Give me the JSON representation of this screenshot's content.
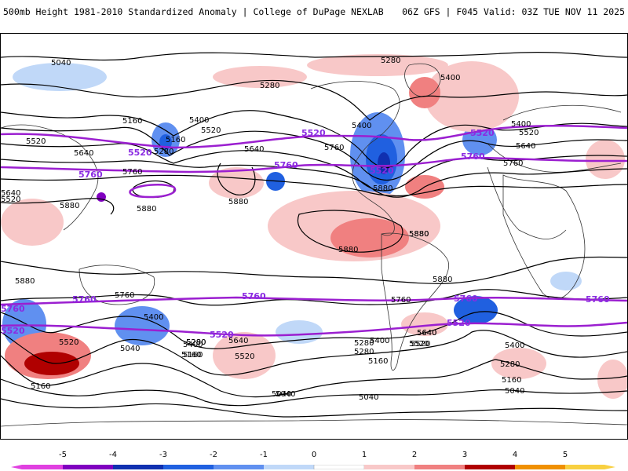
{
  "header": {
    "title_left": "500mb Height 1981-2010 Standardized Anomaly | College of DuPage NEXLAB",
    "title_right": "06Z GFS | F045 Valid: 03Z TUE NOV 11 2025"
  },
  "colorbar": {
    "ticks": [
      "-5",
      "-4",
      "-3",
      "-2",
      "-1",
      "0",
      "1",
      "2",
      "3",
      "4",
      "5"
    ],
    "colors": [
      "#e040e0",
      "#8000c0",
      "#1030b0",
      "#2060e0",
      "#6090f0",
      "#c0d8f8",
      "#ffffff",
      "#f8c8c8",
      "#f08080",
      "#e02020",
      "#b00000",
      "#f09000",
      "#f8d040"
    ]
  },
  "map": {
    "contour_labels_black": [
      "5040",
      "5280",
      "5400",
      "5160",
      "5520",
      "5640",
      "5760",
      "5880"
    ],
    "contour_labels_purple": [
      "5520",
      "5760"
    ],
    "labels": {
      "l1": "5040",
      "l2": "5280",
      "l3": "5280",
      "l4": "5400",
      "l5": "5400",
      "l6": "5160",
      "l7": "5400",
      "l8": "5520",
      "l9": "5520",
      "l10": "5640",
      "l11": "5280",
      "l12": "5640",
      "l13": "5760",
      "l14": "5880",
      "l15": "5880",
      "l16": "5880",
      "l17": "5880",
      "l18": "5880",
      "l19": "5880",
      "l20": "5760",
      "l21": "5520",
      "l22": "5640",
      "l23": "5760",
      "l24": "5400",
      "l25": "5520",
      "l26": "5640",
      "l27": "5760",
      "l28": "5880",
      "l29": "5280",
      "l30": "5160",
      "l31": "5040",
      "l32": "5400",
      "l33": "5520",
      "l34": "5640",
      "l35": "5160",
      "l36": "5280",
      "l37": "5040",
      "l38": "5040",
      "l39": "5160",
      "l40": "5280",
      "l41": "5400",
      "l42": "5520",
      "l43": "5640",
      "l44": "5520",
      "l45": "5400",
      "l46": "5280",
      "l47": "5160",
      "l48": "5040",
      "l49": "5160",
      "l50": "5760",
      "l51": "5400",
      "l52": "5280",
      "l53": "5160",
      "l54": "5040",
      "l55": "5520",
      "l56": "5640",
      "l57": "5880",
      "l58": "5880"
    },
    "purple_labels": {
      "p1": "5520",
      "p2": "5520",
      "p3": "5520",
      "p4": "5520",
      "p5": "5760",
      "p6": "5760",
      "p7": "5760",
      "p8": "5760",
      "p9": "5760",
      "p10": "5760",
      "p11": "5760",
      "p12": "5760",
      "p13": "5520",
      "p14": "5520",
      "p15": "5520"
    }
  }
}
